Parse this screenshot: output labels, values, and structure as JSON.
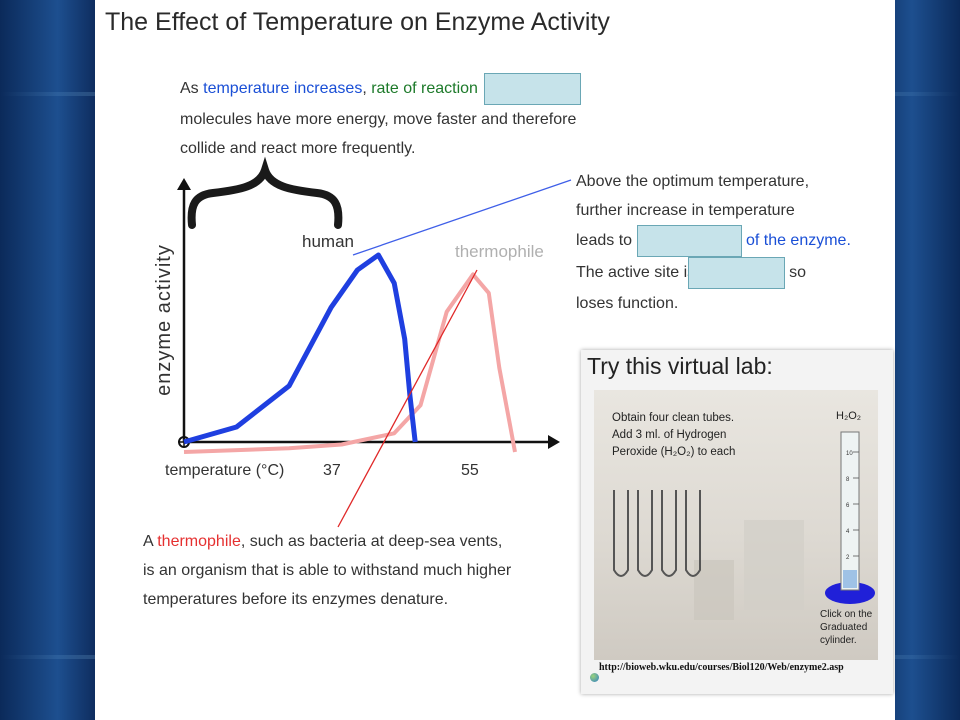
{
  "title": "The Effect of Temperature on Enzyme Activity",
  "intro": {
    "p1": "As ",
    "temp_increases": "temperature increases",
    "comma": ", ",
    "rate": "rate of reaction",
    "line2": "molecules have more energy, move faster and therefore",
    "line3": "collide and react more frequently."
  },
  "optimum": {
    "line1": "Above the optimum temperature,",
    "line2": "further increase in temperature",
    "line3_pre": "leads to",
    "line3_post": "of the enzyme.",
    "line4_pre": "The active site is c",
    "line4_post": "so",
    "line5": "loses function."
  },
  "thermophile_note": {
    "a": "A ",
    "thermophile": "thermophile",
    "rest1": ", such as bacteria at deep-sea vents,",
    "line2": "is an organism that is able to withstand much higher",
    "line3": "temperatures before its enzymes denature."
  },
  "chart_data": {
    "type": "line",
    "ylabel": "enzyme activity",
    "xlabel": "temperature (°C)",
    "ticks": [
      "37",
      "55"
    ],
    "series": [
      {
        "name": "human",
        "color": "#1f3fe0",
        "x": [
          0,
          10,
          20,
          28,
          33,
          37,
          40,
          42,
          43,
          44
        ],
        "y": [
          0,
          0.08,
          0.3,
          0.72,
          0.92,
          1.0,
          0.85,
          0.55,
          0.25,
          0
        ]
      },
      {
        "name": "thermophile",
        "color": "#f4a6a6",
        "x": [
          0,
          20,
          30,
          40,
          45,
          50,
          55,
          58,
          60,
          62,
          63
        ],
        "y": [
          0,
          0.02,
          0.04,
          0.1,
          0.25,
          0.75,
          0.95,
          0.85,
          0.45,
          0.15,
          0
        ]
      }
    ],
    "colors": {
      "human": "#1f3fe0",
      "thermophile": "#f4a6a6",
      "connector_blue": "#3f5fe8",
      "connector_red": "#e02828"
    }
  },
  "lab": {
    "title": "Try this virtual lab:",
    "instr1": "Obtain four clean tubes.",
    "instr2": "Add 3 ml. of Hydrogen",
    "instr3": "Peroxide (H₂O₂) to each",
    "h2o2": "H₂O₂",
    "scale": [
      "10",
      "8",
      "6",
      "4",
      "2"
    ],
    "click1": "Click on the",
    "click2": "Graduated",
    "click3": "cylinder.",
    "url": "http://bioweb.wku.edu/courses/Biol120/Web/enzyme2.asp"
  }
}
